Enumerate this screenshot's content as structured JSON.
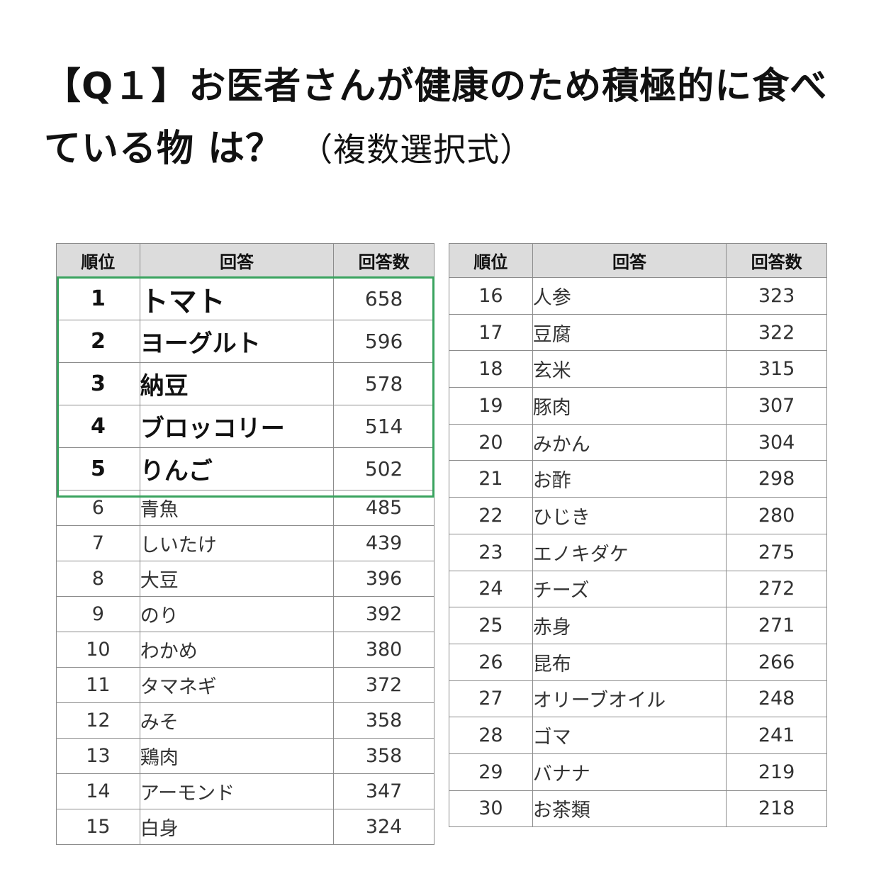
{
  "title": {
    "main": "【Q１】お医者さんが健康のため積極的に食べている物 は？",
    "sub": "（複数選択式）"
  },
  "headers": {
    "rank": "順位",
    "answer": "回答",
    "count": "回答数"
  },
  "accent_color": "#3aa35f",
  "left_rows": [
    {
      "rank": "1",
      "answer": "トマト",
      "count": "658"
    },
    {
      "rank": "2",
      "answer": "ヨーグルト",
      "count": "596"
    },
    {
      "rank": "3",
      "answer": "納豆",
      "count": "578"
    },
    {
      "rank": "4",
      "answer": "ブロッコリー",
      "count": "514"
    },
    {
      "rank": "5",
      "answer": "りんご",
      "count": "502"
    },
    {
      "rank": "6",
      "answer": "青魚",
      "count": "485"
    },
    {
      "rank": "7",
      "answer": "しいたけ",
      "count": "439"
    },
    {
      "rank": "8",
      "answer": "大豆",
      "count": "396"
    },
    {
      "rank": "9",
      "answer": "のり",
      "count": "392"
    },
    {
      "rank": "10",
      "answer": "わかめ",
      "count": "380"
    },
    {
      "rank": "11",
      "answer": "タマネギ",
      "count": "372"
    },
    {
      "rank": "12",
      "answer": "みそ",
      "count": "358"
    },
    {
      "rank": "13",
      "answer": "鶏肉",
      "count": "358"
    },
    {
      "rank": "14",
      "answer": "アーモンド",
      "count": "347"
    },
    {
      "rank": "15",
      "answer": "白身",
      "count": "324"
    }
  ],
  "right_rows": [
    {
      "rank": "16",
      "answer": "人参",
      "count": "323"
    },
    {
      "rank": "17",
      "answer": "豆腐",
      "count": "322"
    },
    {
      "rank": "18",
      "answer": "玄米",
      "count": "315"
    },
    {
      "rank": "19",
      "answer": "豚肉",
      "count": "307"
    },
    {
      "rank": "20",
      "answer": "みかん",
      "count": "304"
    },
    {
      "rank": "21",
      "answer": "お酢",
      "count": "298"
    },
    {
      "rank": "22",
      "answer": "ひじき",
      "count": "280"
    },
    {
      "rank": "23",
      "answer": "エノキダケ",
      "count": "275"
    },
    {
      "rank": "24",
      "answer": "チーズ",
      "count": "272"
    },
    {
      "rank": "25",
      "answer": "赤身",
      "count": "271"
    },
    {
      "rank": "26",
      "answer": "昆布",
      "count": "266"
    },
    {
      "rank": "27",
      "answer": "オリーブオイル",
      "count": "248"
    },
    {
      "rank": "28",
      "answer": "ゴマ",
      "count": "241"
    },
    {
      "rank": "29",
      "answer": "バナナ",
      "count": "219"
    },
    {
      "rank": "30",
      "answer": "お茶類",
      "count": "218"
    }
  ]
}
